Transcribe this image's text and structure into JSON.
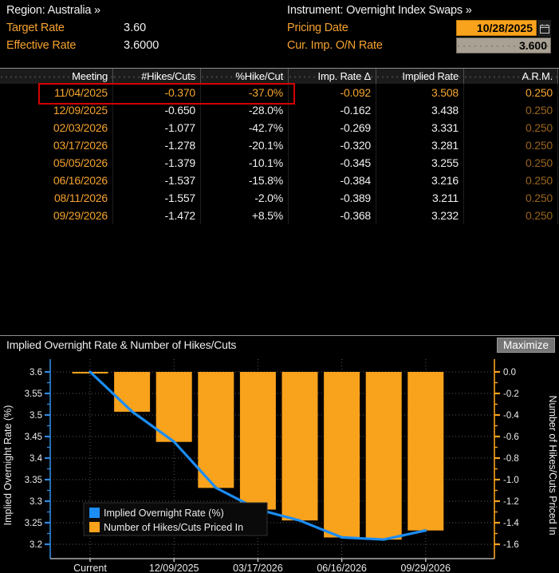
{
  "header": {
    "region": "Region: Australia »",
    "instrument": "Instrument: Overnight Index Swaps »",
    "target_rate_label": "Target Rate",
    "target_rate_value": "3.60",
    "effective_rate_label": "Effective Rate",
    "effective_rate_value": "3.6000",
    "pricing_date_label": "Pricing Date",
    "pricing_date_value": "10/28/2025",
    "cur_imp_label": "Cur. Imp. O/N Rate",
    "cur_imp_value": "3.600"
  },
  "table": {
    "columns": [
      "Meeting",
      "#Hikes/Cuts",
      "%Hike/Cut",
      "Imp. Rate Δ",
      "Implied Rate",
      "A.R.M."
    ],
    "rows": [
      [
        "11/04/2025",
        "-0.370",
        "-37.0%",
        "-0.092",
        "3.508",
        "0.250"
      ],
      [
        "12/09/2025",
        "-0.650",
        "-28.0%",
        "-0.162",
        "3.438",
        "0.250"
      ],
      [
        "02/03/2026",
        "-1.077",
        "-42.7%",
        "-0.269",
        "3.331",
        "0.250"
      ],
      [
        "03/17/2026",
        "-1.278",
        "-20.1%",
        "-0.320",
        "3.281",
        "0.250"
      ],
      [
        "05/05/2026",
        "-1.379",
        "-10.1%",
        "-0.345",
        "3.255",
        "0.250"
      ],
      [
        "06/16/2026",
        "-1.537",
        "-15.8%",
        "-0.384",
        "3.216",
        "0.250"
      ],
      [
        "08/11/2026",
        "-1.557",
        "-2.0%",
        "-0.389",
        "3.211",
        "0.250"
      ],
      [
        "09/29/2026",
        "-1.472",
        "+8.5%",
        "-0.368",
        "3.232",
        "0.250"
      ]
    ],
    "highlight": {
      "row": 0,
      "color": "#D40000"
    }
  },
  "chart_panel": {
    "title": "Implied Overnight Rate & Number of Hikes/Cuts",
    "maximize_label": "Maximize"
  },
  "chart_data": {
    "type": "bar+line",
    "title": "Implied Overnight Rate & Number of Hikes/Cuts",
    "categories": [
      "Current",
      "11/04/2025",
      "12/09/2025",
      "02/03/2026",
      "03/17/2026",
      "05/05/2026",
      "06/16/2026",
      "08/11/2026",
      "09/29/2026"
    ],
    "series": [
      {
        "name": "Implied Overnight Rate (%)",
        "type": "line",
        "axis": "left",
        "color": "#1B8DF5",
        "values": [
          3.6,
          3.508,
          3.438,
          3.331,
          3.281,
          3.255,
          3.216,
          3.211,
          3.232
        ]
      },
      {
        "name": "Number of Hikes/Cuts Priced In",
        "type": "bar",
        "axis": "right",
        "color": "#F9A21C",
        "values": [
          0.0,
          -0.37,
          -0.65,
          -1.077,
          -1.278,
          -1.379,
          -1.537,
          -1.557,
          -1.472
        ]
      }
    ],
    "left_axis": {
      "label": "Implied Overnight Rate (%)",
      "min": 3.2,
      "max": 3.6,
      "ticks": [
        "3.6",
        "3.55",
        "3.5",
        "3.45",
        "3.4",
        "3.35",
        "3.3",
        "3.25",
        "3.2"
      ]
    },
    "right_axis": {
      "label": "Number of Hikes/Cuts Priced In",
      "min": -1.6,
      "max": 0.0,
      "ticks": [
        "0.0",
        "-0.2",
        "-0.4",
        "-0.6",
        "-0.8",
        "-1.0",
        "-1.2",
        "-1.4",
        "-1.6"
      ]
    },
    "x_ticks": [
      {
        "index": 0,
        "label": "Current"
      },
      {
        "index": 2,
        "label": "12/09/2025"
      },
      {
        "index": 4,
        "label": "03/17/2026"
      },
      {
        "index": 6,
        "label": "06/16/2026"
      },
      {
        "index": 8,
        "label": "09/29/2026"
      }
    ],
    "legend_position": "bottom-left",
    "grid": true
  }
}
